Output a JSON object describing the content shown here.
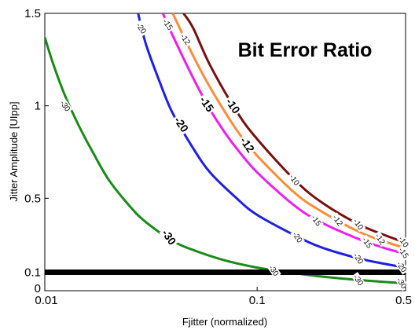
{
  "chart_data": {
    "type": "line",
    "title": "Bit Error Ratio",
    "xlabel": "Fjitter (normalized)",
    "ylabel": "Jitter Amplitude [UIpp]",
    "xscale": "log",
    "xlim": [
      0.01,
      0.5
    ],
    "ylim": [
      0,
      1.5
    ],
    "xticks": [
      {
        "value": 0.01,
        "label": "0.01"
      },
      {
        "value": 0.1,
        "label": "0.1"
      },
      {
        "value": 0.5,
        "label": "0.5"
      }
    ],
    "yticks": [
      {
        "value": 0,
        "label": "0"
      },
      {
        "value": 0.1,
        "label": "0.1"
      },
      {
        "value": 0.5,
        "label": "0.5"
      },
      {
        "value": 1,
        "label": "1"
      },
      {
        "value": 1.5,
        "label": "1.5"
      }
    ],
    "grid": false,
    "reference_line": {
      "y": 0.1,
      "color": "#000000"
    },
    "series": [
      {
        "name": "-30",
        "color": "#1a8a1a",
        "points": [
          [
            0.01,
            1.37
          ],
          [
            0.011,
            1.22
          ],
          [
            0.0125,
            1.05
          ],
          [
            0.0145,
            0.89
          ],
          [
            0.017,
            0.74
          ],
          [
            0.02,
            0.6
          ],
          [
            0.025,
            0.46
          ],
          [
            0.03,
            0.37
          ],
          [
            0.04,
            0.27
          ],
          [
            0.05,
            0.22
          ],
          [
            0.07,
            0.165
          ],
          [
            0.1,
            0.125
          ],
          [
            0.15,
            0.095
          ],
          [
            0.2,
            0.077
          ],
          [
            0.3,
            0.058
          ],
          [
            0.4,
            0.047
          ],
          [
            0.5,
            0.04
          ]
        ]
      },
      {
        "name": "-20",
        "color": "#1f1fe6",
        "points": [
          [
            0.0275,
            1.5
          ],
          [
            0.03,
            1.33
          ],
          [
            0.035,
            1.12
          ],
          [
            0.04,
            0.96
          ],
          [
            0.05,
            0.77
          ],
          [
            0.06,
            0.64
          ],
          [
            0.08,
            0.5
          ],
          [
            0.1,
            0.41
          ],
          [
            0.15,
            0.3
          ],
          [
            0.2,
            0.235
          ],
          [
            0.3,
            0.175
          ],
          [
            0.4,
            0.145
          ],
          [
            0.5,
            0.125
          ]
        ]
      },
      {
        "name": "-15",
        "color": "#ee1fee",
        "points": [
          [
            0.036,
            1.5
          ],
          [
            0.04,
            1.38
          ],
          [
            0.05,
            1.15
          ],
          [
            0.06,
            0.98
          ],
          [
            0.07,
            0.86
          ],
          [
            0.08,
            0.77
          ],
          [
            0.1,
            0.64
          ],
          [
            0.15,
            0.46
          ],
          [
            0.2,
            0.37
          ],
          [
            0.3,
            0.28
          ],
          [
            0.4,
            0.23
          ],
          [
            0.5,
            0.2
          ]
        ]
      },
      {
        "name": "-12",
        "color": "#ff8c3a",
        "points": [
          [
            0.04,
            1.5
          ],
          [
            0.05,
            1.27
          ],
          [
            0.06,
            1.1
          ],
          [
            0.08,
            0.87
          ],
          [
            0.1,
            0.73
          ],
          [
            0.15,
            0.53
          ],
          [
            0.2,
            0.43
          ],
          [
            0.3,
            0.32
          ],
          [
            0.4,
            0.265
          ],
          [
            0.5,
            0.23
          ]
        ]
      },
      {
        "name": "-10",
        "color": "#7a1010",
        "points": [
          [
            0.045,
            1.5
          ],
          [
            0.05,
            1.42
          ],
          [
            0.06,
            1.22
          ],
          [
            0.08,
            0.97
          ],
          [
            0.1,
            0.82
          ],
          [
            0.15,
            0.6
          ],
          [
            0.2,
            0.48
          ],
          [
            0.3,
            0.36
          ],
          [
            0.4,
            0.3
          ],
          [
            0.5,
            0.26
          ]
        ]
      }
    ],
    "contour_labels": [
      {
        "text": "-30",
        "x": 0.0125,
        "y": 1.0,
        "style": "small",
        "series": "-30"
      },
      {
        "text": "-30",
        "x": 0.0385,
        "y": 0.29,
        "style": "big",
        "series": "-30"
      },
      {
        "text": "-30",
        "x": 0.12,
        "y": 0.11,
        "style": "small",
        "series": "-30"
      },
      {
        "text": "-30",
        "x": 0.3,
        "y": 0.058,
        "style": "small",
        "series": "-30"
      },
      {
        "text": "-30",
        "x": 0.48,
        "y": 0.042,
        "style": "small",
        "series": "-30"
      },
      {
        "text": "-20",
        "x": 0.0285,
        "y": 1.42,
        "style": "small",
        "series": "-20"
      },
      {
        "text": "-20",
        "x": 0.044,
        "y": 0.9,
        "style": "big",
        "series": "-20"
      },
      {
        "text": "-20",
        "x": 0.155,
        "y": 0.29,
        "style": "small",
        "series": "-20"
      },
      {
        "text": "-20",
        "x": 0.3,
        "y": 0.175,
        "style": "small",
        "series": "-20"
      },
      {
        "text": "-20",
        "x": 0.48,
        "y": 0.13,
        "style": "small",
        "series": "-20"
      },
      {
        "text": "-15",
        "x": 0.038,
        "y": 1.44,
        "style": "small",
        "series": "-15"
      },
      {
        "text": "-15",
        "x": 0.058,
        "y": 1.01,
        "style": "big",
        "series": "-15"
      },
      {
        "text": "-15",
        "x": 0.19,
        "y": 0.38,
        "style": "small",
        "series": "-15"
      },
      {
        "text": "-15",
        "x": 0.33,
        "y": 0.26,
        "style": "small",
        "series": "-15"
      },
      {
        "text": "-15",
        "x": 0.49,
        "y": 0.205,
        "style": "small",
        "series": "-15"
      },
      {
        "text": "-12",
        "x": 0.046,
        "y": 1.36,
        "style": "small",
        "series": "-12"
      },
      {
        "text": "-12",
        "x": 0.09,
        "y": 0.79,
        "style": "big",
        "series": "-12"
      },
      {
        "text": "-12",
        "x": 0.24,
        "y": 0.38,
        "style": "small",
        "series": "-12"
      },
      {
        "text": "-12",
        "x": 0.38,
        "y": 0.28,
        "style": "small",
        "series": "-12"
      },
      {
        "text": "-10",
        "x": 0.077,
        "y": 1.0,
        "style": "big",
        "series": "-10"
      },
      {
        "text": "-10",
        "x": 0.15,
        "y": 0.6,
        "style": "small",
        "series": "-10"
      },
      {
        "text": "-10",
        "x": 0.3,
        "y": 0.36,
        "style": "small",
        "series": "-10"
      },
      {
        "text": "-10",
        "x": 0.49,
        "y": 0.265,
        "style": "small",
        "series": "-10"
      }
    ]
  }
}
